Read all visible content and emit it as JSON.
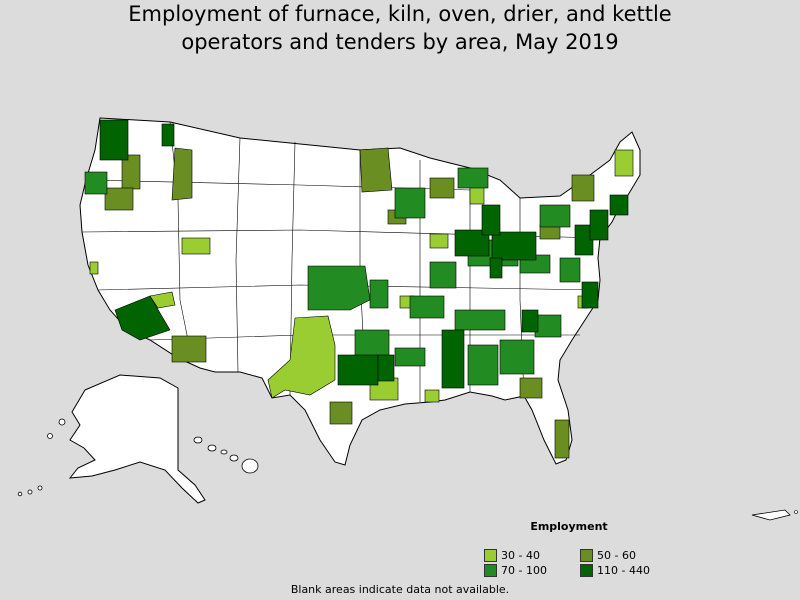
{
  "title": {
    "line1": "Employment of furnace, kiln, oven, drier, and kettle",
    "line2": "operators and tenders by area, May 2019"
  },
  "legend": {
    "title": "Employment",
    "items": [
      {
        "label": "30 - 40",
        "color": "#9acd32"
      },
      {
        "label": "50 - 60",
        "color": "#6b8e23"
      },
      {
        "label": "70 - 100",
        "color": "#228b22"
      },
      {
        "label": "110 - 440",
        "color": "#006400"
      }
    ]
  },
  "footnote": "Blank areas indicate data not available.",
  "colors": {
    "background": "#dcdcdc",
    "land": "#ffffff",
    "border": "#000000"
  }
}
